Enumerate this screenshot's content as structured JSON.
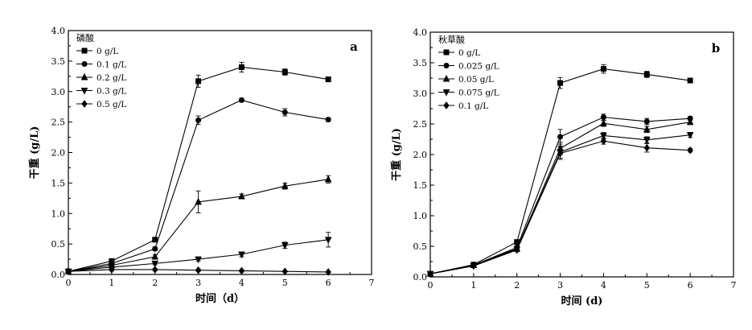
{
  "chart_data": [
    {
      "type": "line",
      "panel_label": "a",
      "legend_title": "磷酸",
      "xlabel": "时间（d）",
      "ylabel": "干重 (g/L)",
      "xlim": [
        0,
        7
      ],
      "ylim": [
        0,
        4.0
      ],
      "xticks": [
        "0",
        "1",
        "2",
        "3",
        "4",
        "5",
        "6",
        "7"
      ],
      "yticks": [
        "0.0",
        "0.5",
        "1.0",
        "1.5",
        "2.0",
        "2.5",
        "3.0",
        "3.5",
        "4.0"
      ],
      "legend_position": "top-left",
      "grid": false,
      "x": [
        0,
        1,
        2,
        3,
        4,
        5,
        6
      ],
      "series": [
        {
          "name": "0 g/L",
          "marker": "square",
          "values": [
            0.05,
            0.22,
            0.57,
            3.17,
            3.4,
            3.32,
            3.2
          ],
          "errors": [
            0.02,
            0.02,
            0.03,
            0.1,
            0.08,
            0.05,
            0.03
          ]
        },
        {
          "name": "0.1 g/L",
          "marker": "circle",
          "values": [
            0.05,
            0.18,
            0.42,
            2.53,
            2.86,
            2.66,
            2.54
          ],
          "errors": [
            0.02,
            0.02,
            0.03,
            0.07,
            0.03,
            0.06,
            0.03
          ]
        },
        {
          "name": "0.2 g/L",
          "marker": "triangle-up",
          "values": [
            0.05,
            0.15,
            0.29,
            1.19,
            1.28,
            1.45,
            1.56
          ],
          "errors": [
            0.02,
            0.02,
            0.03,
            0.18,
            0.04,
            0.05,
            0.06
          ]
        },
        {
          "name": "0.3 g/L",
          "marker": "triangle-down",
          "values": [
            0.05,
            0.12,
            0.18,
            0.25,
            0.33,
            0.48,
            0.57
          ],
          "errors": [
            0.02,
            0.02,
            0.02,
            0.03,
            0.04,
            0.05,
            0.12
          ]
        },
        {
          "name": "0.5 g/L",
          "marker": "diamond",
          "values": [
            0.05,
            0.08,
            0.08,
            0.07,
            0.06,
            0.05,
            0.04
          ],
          "errors": [
            0.01,
            0.02,
            0.02,
            0.02,
            0.02,
            0.01,
            0.01
          ]
        }
      ]
    },
    {
      "type": "line",
      "panel_label": "b",
      "legend_title": "秋草酸",
      "xlabel": "时间 (d)",
      "ylabel": "干重 (g/L)",
      "xlim": [
        0,
        7
      ],
      "ylim": [
        0,
        4.0
      ],
      "xticks": [
        "0",
        "1",
        "2",
        "3",
        "4",
        "5",
        "6",
        "7"
      ],
      "yticks": [
        "0.0",
        "0.5",
        "1.0",
        "1.5",
        "2.0",
        "2.5",
        "3.0",
        "3.5",
        "4.0"
      ],
      "legend_position": "top-left",
      "grid": false,
      "x": [
        0,
        1,
        2,
        3,
        4,
        5,
        6
      ],
      "series": [
        {
          "name": "0 g/L",
          "marker": "square",
          "values": [
            0.05,
            0.2,
            0.57,
            3.17,
            3.4,
            3.31,
            3.21
          ],
          "errors": [
            0.02,
            0.02,
            0.03,
            0.09,
            0.07,
            0.05,
            0.03
          ]
        },
        {
          "name": "0.025 g/L",
          "marker": "circle",
          "values": [
            0.05,
            0.19,
            0.48,
            2.29,
            2.61,
            2.54,
            2.59
          ],
          "errors": [
            0.02,
            0.02,
            0.03,
            0.12,
            0.05,
            0.05,
            0.03
          ]
        },
        {
          "name": "0.05 g/L",
          "marker": "triangle-up",
          "values": [
            0.05,
            0.19,
            0.46,
            2.1,
            2.51,
            2.41,
            2.53
          ],
          "errors": [
            0.02,
            0.02,
            0.03,
            0.1,
            0.05,
            0.05,
            0.04
          ]
        },
        {
          "name": "0.075 g/L",
          "marker": "triangle-down",
          "values": [
            0.05,
            0.18,
            0.45,
            2.04,
            2.31,
            2.24,
            2.32
          ],
          "errors": [
            0.02,
            0.02,
            0.03,
            0.1,
            0.05,
            0.05,
            0.04
          ]
        },
        {
          "name": "0.1 g/L",
          "marker": "diamond",
          "values": [
            0.05,
            0.18,
            0.44,
            2.02,
            2.22,
            2.11,
            2.07
          ],
          "errors": [
            0.02,
            0.02,
            0.03,
            0.1,
            0.05,
            0.07,
            0.03
          ]
        }
      ]
    }
  ]
}
